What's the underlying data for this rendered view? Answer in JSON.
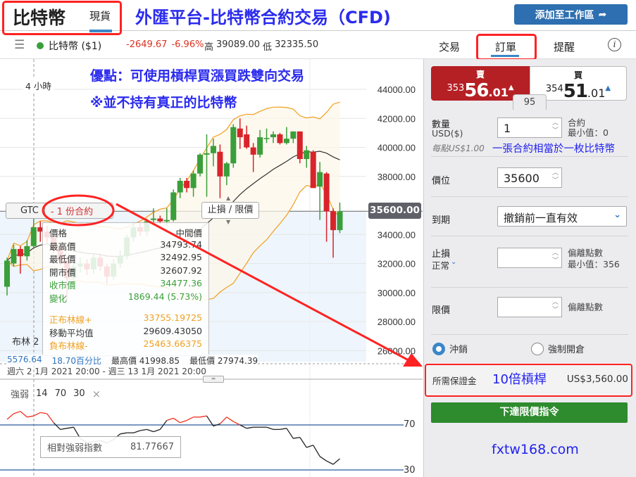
{
  "header": {
    "title": "比特幣",
    "spot_tab": "現貨",
    "add_watchlist": "添加至工作區",
    "add_icon": "share-arrow-icon"
  },
  "annotations": {
    "headline": "外匯平台-比特幣合約交易（CFD)",
    "advantage": "優點：可使用槓桿買漲買跌雙向交易",
    "note": "※並不持有真正的比特幣",
    "contract_note": "一張合約相當於一枚比特幣",
    "leverage": "10倍槓桿",
    "site": "fxtw168.com"
  },
  "instrument": {
    "name": "比特幣 ($1)",
    "status_color": "#3a9f3a",
    "change": "-2649.67",
    "change_pct": "-6.96%",
    "high_label": "高",
    "high": "39089.00",
    "low_label": "低",
    "low": "32335.50"
  },
  "tabs": [
    {
      "label": "交易"
    },
    {
      "label": "訂單",
      "active": true
    },
    {
      "label": "提醒"
    }
  ],
  "chart": {
    "interval": "4 小時",
    "bollinger_label": "布林  2",
    "y_ticks": [
      "44000.00",
      "42000.00",
      "40000.00",
      "38000.00",
      "34000.00",
      "32000.00",
      "30000.00",
      "28000.00",
      "26000.00"
    ],
    "current_price": "35600.00",
    "gtc": "GTC",
    "order_qty": "- 1 份合約",
    "sl_tp": "止損 / 限價",
    "stats": {
      "range": "5576.64",
      "pct": "18.70百分比",
      "high": "最高價 41998.85",
      "low": "最低價 27974.39"
    },
    "date_range": "週六 2 1月 2021 20:00 - 週三 13 1月 2021 20:00",
    "tooltip": {
      "head_l": "價格",
      "head_r": "中間價",
      "rows": [
        {
          "k": "最高價",
          "v": "34793.74"
        },
        {
          "k": "最低價",
          "v": "32492.95"
        },
        {
          "k": "開市價",
          "v": "32607.92"
        },
        {
          "k": "收市價",
          "v": "34477.36"
        },
        {
          "k": "變化",
          "v": "1869.44 (5.73%)"
        }
      ],
      "bands": [
        {
          "k": "正布林線+",
          "v": "33755.19725"
        },
        {
          "k": "移動平均值",
          "v": "29609.43050"
        },
        {
          "k": "負布林線-",
          "v": "25463.66375"
        }
      ]
    },
    "rsi": {
      "label": "強弱",
      "params": [
        "14",
        "70",
        "30"
      ],
      "levels": [
        "70",
        "30"
      ],
      "tooltip_label": "相對強弱指數",
      "tooltip_value": "81.77667",
      "values": [
        75,
        80,
        82,
        77,
        78,
        81,
        80,
        72,
        66,
        67,
        68,
        58,
        54,
        55,
        56,
        54,
        57,
        62,
        63,
        63,
        65,
        66,
        64,
        66,
        74,
        76,
        72,
        74,
        77,
        77,
        78,
        69,
        71,
        77,
        73,
        70,
        67,
        68,
        68,
        68,
        66,
        66,
        67,
        58,
        59,
        50,
        52,
        42,
        38,
        35,
        40
      ]
    },
    "colors": {
      "up": "#3a9f3a",
      "down": "#d9232a",
      "band": "#f0a020",
      "ma": "#333333"
    }
  },
  "chart_data": {
    "type": "candlestick",
    "ylim": [
      25000,
      45000
    ],
    "ohlc": [
      [
        30400,
        32400,
        29800,
        32200
      ],
      [
        32000,
        33300,
        31800,
        33000
      ],
      [
        33000,
        33200,
        31300,
        32500
      ],
      [
        32500,
        33600,
        32200,
        33200
      ],
      [
        33200,
        35200,
        33000,
        34500
      ],
      [
        34500,
        34900,
        33500,
        34200
      ],
      [
        34200,
        34600,
        33400,
        33800
      ],
      [
        33800,
        34100,
        32700,
        33000
      ],
      [
        33000,
        33300,
        31900,
        32200
      ],
      [
        32200,
        32500,
        29500,
        31000
      ],
      [
        31000,
        32100,
        30700,
        31800
      ],
      [
        31800,
        32400,
        31400,
        32000
      ],
      [
        32000,
        32300,
        31200,
        31600
      ],
      [
        31600,
        32700,
        31300,
        32400
      ],
      [
        32400,
        32700,
        31500,
        31800
      ],
      [
        31800,
        32000,
        30600,
        31100
      ],
      [
        31100,
        32300,
        30900,
        32000
      ],
      [
        32000,
        32900,
        31700,
        32500
      ],
      [
        32500,
        34000,
        32300,
        33800
      ],
      [
        33800,
        34800,
        33500,
        34500
      ],
      [
        34500,
        34800,
        33900,
        34200
      ],
      [
        34200,
        35100,
        33900,
        34900
      ],
      [
        35000,
        35800,
        34800,
        35100
      ],
      [
        35100,
        35300,
        34700,
        34900
      ],
      [
        34900,
        35800,
        34600,
        35000
      ],
      [
        35000,
        37100,
        34900,
        36900
      ],
      [
        36900,
        37900,
        36500,
        37700
      ],
      [
        37700,
        37900,
        36900,
        37200
      ],
      [
        37200,
        38400,
        36600,
        38200
      ],
      [
        38200,
        39600,
        38000,
        39500
      ],
      [
        39500,
        40900,
        36600,
        39600
      ],
      [
        39600,
        40600,
        38700,
        40100
      ],
      [
        39700,
        40200,
        36500,
        38000
      ],
      [
        38000,
        39000,
        37400,
        38900
      ],
      [
        38900,
        41600,
        38600,
        41400
      ],
      [
        41300,
        42000,
        39900,
        40700
      ],
      [
        40900,
        41500,
        39900,
        40000
      ],
      [
        40000,
        40300,
        38300,
        39500
      ],
      [
        39500,
        41200,
        39300,
        40700
      ],
      [
        40600,
        41300,
        40300,
        40650
      ],
      [
        40700,
        41100,
        40300,
        40900
      ],
      [
        40900,
        41000,
        40200,
        40300
      ],
      [
        40300,
        41400,
        40200,
        40600
      ],
      [
        40600,
        41100,
        40300,
        41100
      ],
      [
        41100,
        41100,
        38900,
        39200
      ],
      [
        39200,
        40100,
        38600,
        39800
      ],
      [
        39700,
        39800,
        37200,
        37200
      ],
      [
        37300,
        39000,
        35000,
        38300
      ],
      [
        38200,
        38300,
        33500,
        35600
      ],
      [
        35600,
        35800,
        32400,
        34300
      ],
      [
        34300,
        36200,
        34100,
        35600
      ]
    ]
  },
  "order": {
    "sell": {
      "label": "賣",
      "prefix": "353",
      "main": "56",
      "suffix": ".01"
    },
    "buy": {
      "label": "買",
      "prefix": "354",
      "main": "51",
      "suffix": ".01"
    },
    "spread": "95",
    "qty_label": "數量",
    "qty_unit": "USD($)",
    "qty_value": "1",
    "qty_right1": "合約",
    "qty_right2": "最小值：0",
    "per_point": "每點US$1.00",
    "price_label": "價位",
    "price_value": "35600",
    "expiry_label": "到期",
    "expiry_value": "撤銷前一直有效",
    "sl_label": "止損",
    "sl_mode": "正常",
    "sl_right1": "偏離點數",
    "sl_right2": "最小值：356",
    "limit_label": "限價",
    "limit_right": "偏離點數",
    "radio_close": "沖銷",
    "radio_open": "強制開倉",
    "margin_label": "所需保證金",
    "margin_value": "US$3,560.00",
    "submit": "下達限價指令"
  }
}
